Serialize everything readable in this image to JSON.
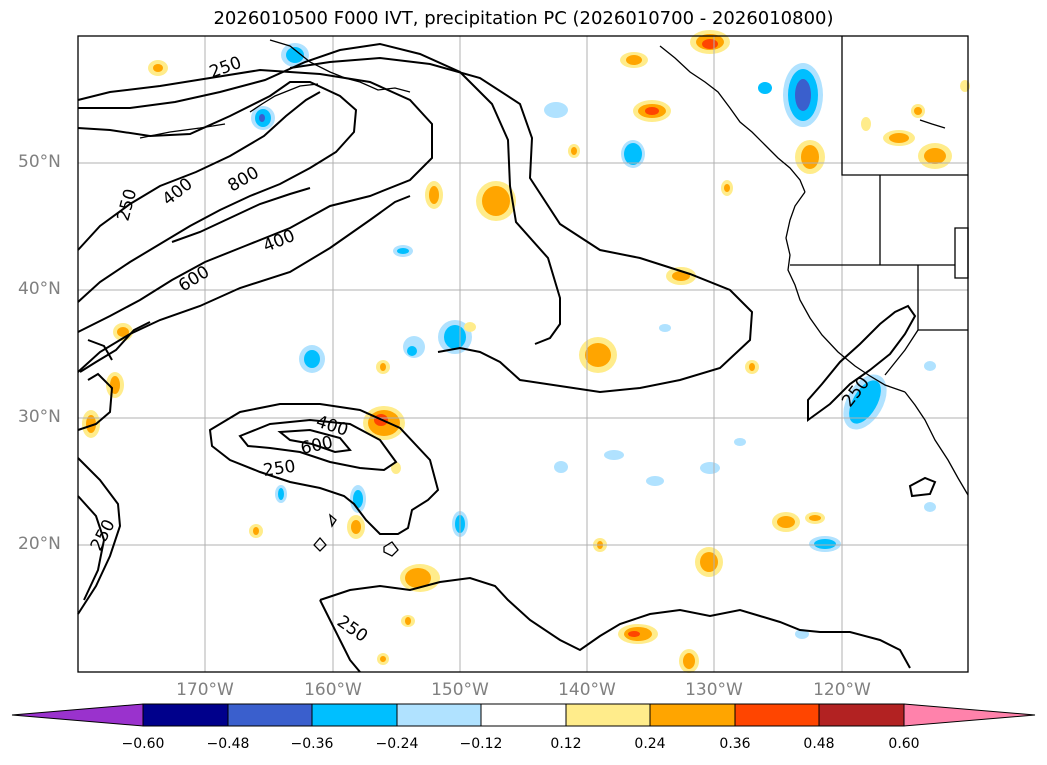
{
  "title": "2026010500 F000 IVT, precipitation PC (2026010700 - 2026010800)",
  "map": {
    "lat_labels": [
      "50°N",
      "40°N",
      "30°N",
      "20°N"
    ],
    "lon_labels": [
      "170°W",
      "160°W",
      "150°W",
      "140°W",
      "130°W",
      "120°W"
    ],
    "contour_labels": [
      "250",
      "400",
      "800",
      "400",
      "250",
      "600",
      "400",
      "600",
      "250",
      "250",
      "250",
      "250"
    ]
  },
  "colorbar": {
    "ticks": [
      "−0.60",
      "−0.48",
      "−0.36",
      "−0.24",
      "−0.12",
      "0.12",
      "0.24",
      "0.36",
      "0.48",
      "0.60"
    ],
    "colors": [
      "#9a32cd",
      "#00008b",
      "#3a5fcd",
      "#00bfff",
      "#b0e2ff",
      "#ffffff",
      "#ffec8b",
      "#ffa500",
      "#ff4500",
      "#b22222",
      "#ff82ab"
    ]
  },
  "colors": {
    "land_border": "#000000",
    "ivt_contour": "#000000",
    "grid": "#b0b0b0"
  }
}
